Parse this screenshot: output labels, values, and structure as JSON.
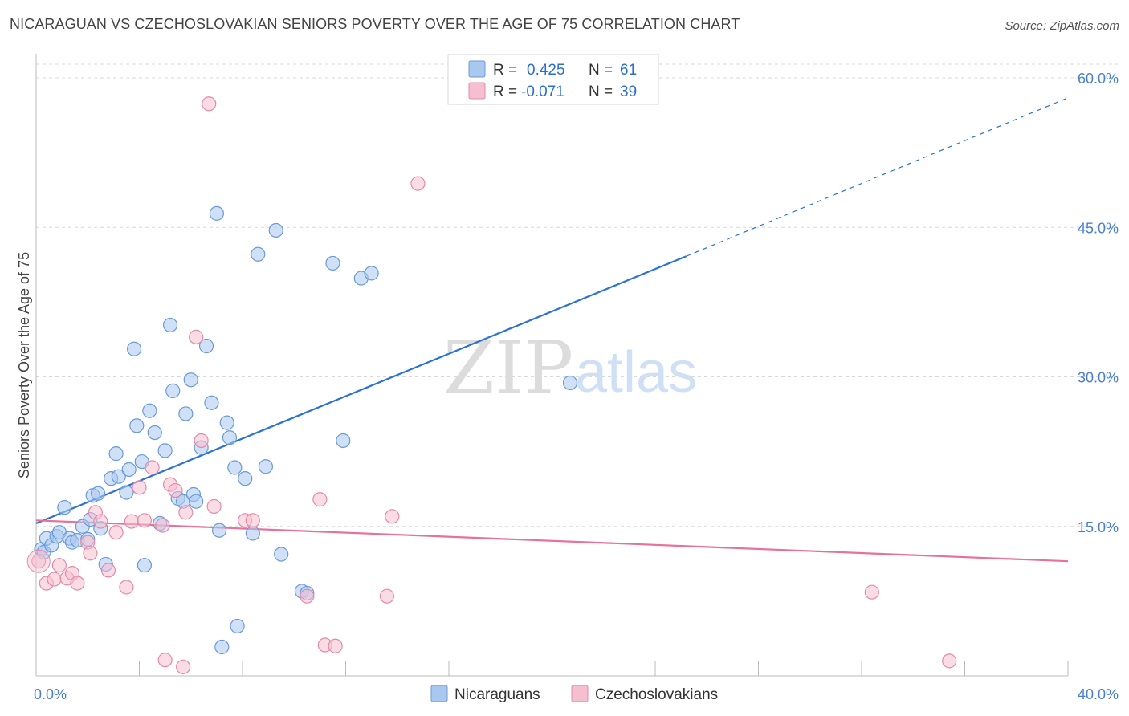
{
  "title": "NICARAGUAN VS CZECHOSLOVAKIAN SENIORS POVERTY OVER THE AGE OF 75 CORRELATION CHART",
  "source": "Source: ZipAtlas.com",
  "watermark": {
    "zip": "ZIP",
    "atlas": "atlas"
  },
  "colors": {
    "blue_fill": "#a9c8f0",
    "blue_stroke": "#6a9ad8",
    "blue_line": "#2a73d4",
    "pink_fill": "#f5bfd0",
    "pink_stroke": "#e48aa8",
    "pink_line": "#e8709a",
    "grid": "#d8d8d8",
    "axis_text": "#4a7fd0"
  },
  "legend": {
    "rows": [
      {
        "r_label": "R =",
        "r_value": "0.425",
        "n_label": "N =",
        "n_value": "61"
      },
      {
        "r_label": "R =",
        "r_value": "-0.071",
        "n_label": "N =",
        "n_value": "39"
      }
    ]
  },
  "chart_data": {
    "type": "scatter",
    "title": "NICARAGUAN VS CZECHOSLOVAKIAN SENIORS POVERTY OVER THE AGE OF 75 CORRELATION CHART",
    "xlabel": "",
    "ylabel": "Seniors Poverty Over the Age of 75",
    "xlim": [
      0,
      40
    ],
    "ylim": [
      0,
      60
    ],
    "x_tick_labels": [
      {
        "value": 0,
        "label": "0.0%"
      },
      {
        "value": 40,
        "label": "40.0%"
      }
    ],
    "y_tick_labels": [
      {
        "value": 15,
        "label": "15.0%"
      },
      {
        "value": 30,
        "label": "30.0%"
      },
      {
        "value": 45,
        "label": "45.0%"
      },
      {
        "value": 60,
        "label": "60.0%"
      }
    ],
    "series": [
      {
        "name": "Nicaraguans",
        "color": "blue",
        "r": 0.425,
        "n": 61,
        "trend": {
          "x0": 0,
          "y0": 15.3,
          "x1": 25.2,
          "y1": 42.1,
          "dash_to_x": 40,
          "dash_to_y": 58.0
        },
        "points": [
          [
            0.2,
            12.7
          ],
          [
            0.3,
            12.4
          ],
          [
            0.4,
            13.8
          ],
          [
            0.6,
            13.1
          ],
          [
            0.8,
            14.0
          ],
          [
            0.9,
            14.4
          ],
          [
            1.1,
            16.9
          ],
          [
            1.3,
            13.8
          ],
          [
            1.4,
            13.4
          ],
          [
            1.6,
            13.6
          ],
          [
            1.8,
            15.0
          ],
          [
            2.0,
            13.7
          ],
          [
            2.1,
            15.7
          ],
          [
            2.2,
            18.1
          ],
          [
            2.4,
            18.3
          ],
          [
            2.5,
            14.8
          ],
          [
            2.7,
            11.2
          ],
          [
            2.9,
            19.8
          ],
          [
            3.1,
            22.3
          ],
          [
            3.2,
            20.0
          ],
          [
            3.5,
            18.4
          ],
          [
            3.6,
            20.7
          ],
          [
            3.8,
            32.8
          ],
          [
            3.9,
            25.1
          ],
          [
            4.1,
            21.5
          ],
          [
            4.2,
            11.1
          ],
          [
            4.4,
            26.6
          ],
          [
            4.6,
            24.4
          ],
          [
            4.8,
            15.3
          ],
          [
            5.0,
            22.6
          ],
          [
            5.2,
            35.2
          ],
          [
            5.3,
            28.6
          ],
          [
            5.5,
            17.8
          ],
          [
            5.7,
            17.5
          ],
          [
            5.8,
            26.3
          ],
          [
            6.0,
            29.7
          ],
          [
            6.1,
            18.2
          ],
          [
            6.2,
            17.5
          ],
          [
            6.4,
            22.9
          ],
          [
            6.6,
            33.1
          ],
          [
            6.8,
            27.4
          ],
          [
            7.0,
            46.4
          ],
          [
            7.1,
            14.6
          ],
          [
            7.2,
            2.9
          ],
          [
            7.4,
            25.4
          ],
          [
            7.5,
            23.9
          ],
          [
            7.7,
            20.9
          ],
          [
            7.8,
            5.0
          ],
          [
            8.1,
            19.8
          ],
          [
            8.4,
            14.3
          ],
          [
            8.6,
            42.3
          ],
          [
            8.9,
            21.0
          ],
          [
            9.3,
            44.7
          ],
          [
            9.5,
            12.2
          ],
          [
            10.3,
            8.5
          ],
          [
            10.5,
            8.3
          ],
          [
            11.5,
            41.4
          ],
          [
            11.9,
            23.6
          ],
          [
            12.6,
            39.9
          ],
          [
            13.0,
            40.4
          ],
          [
            20.7,
            29.4
          ]
        ]
      },
      {
        "name": "Czechoslovakians",
        "color": "pink",
        "r": -0.071,
        "n": 39,
        "trend": {
          "x0": 0,
          "y0": 15.6,
          "x1": 40,
          "y1": 11.5
        },
        "points": [
          [
            0.1,
            11.5
          ],
          [
            0.4,
            9.3
          ],
          [
            0.7,
            9.7
          ],
          [
            0.9,
            11.1
          ],
          [
            1.2,
            9.8
          ],
          [
            1.4,
            10.3
          ],
          [
            1.6,
            9.3
          ],
          [
            2.0,
            13.4
          ],
          [
            2.1,
            12.3
          ],
          [
            2.3,
            16.4
          ],
          [
            2.5,
            15.5
          ],
          [
            2.8,
            10.6
          ],
          [
            3.1,
            14.4
          ],
          [
            3.5,
            8.9
          ],
          [
            3.7,
            15.5
          ],
          [
            4.0,
            18.9
          ],
          [
            4.2,
            15.6
          ],
          [
            4.5,
            20.9
          ],
          [
            4.9,
            15.1
          ],
          [
            5.0,
            1.6
          ],
          [
            5.2,
            19.2
          ],
          [
            5.4,
            18.6
          ],
          [
            5.7,
            0.9
          ],
          [
            5.8,
            16.4
          ],
          [
            6.2,
            34.0
          ],
          [
            6.4,
            23.6
          ],
          [
            6.7,
            57.4
          ],
          [
            6.9,
            17.0
          ],
          [
            8.1,
            15.6
          ],
          [
            8.4,
            15.6
          ],
          [
            10.5,
            8.0
          ],
          [
            11.0,
            17.7
          ],
          [
            11.2,
            3.1
          ],
          [
            11.6,
            3.0
          ],
          [
            13.6,
            8.0
          ],
          [
            13.8,
            16.0
          ],
          [
            14.8,
            49.4
          ],
          [
            32.4,
            8.4
          ],
          [
            35.4,
            1.5
          ]
        ]
      }
    ]
  },
  "bottom_legend": [
    {
      "label": "Nicaraguans",
      "color": "blue"
    },
    {
      "label": "Czechoslovakians",
      "color": "pink"
    }
  ]
}
